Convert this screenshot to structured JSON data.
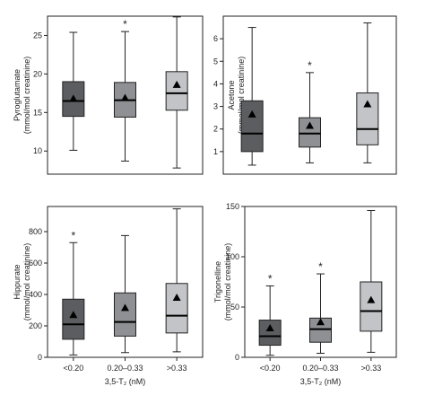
{
  "colors": {
    "box_fills": [
      "#5b5d60",
      "#8e9094",
      "#c2c4c7"
    ],
    "stroke": "#222222",
    "frame": "#222222"
  },
  "chart_data": [
    {
      "type": "box",
      "panel": "top-left",
      "categories": [
        "<0.20",
        "0.20–0.33",
        ">0.33"
      ],
      "show_xticks": false,
      "xlabel": "",
      "ylabel": [
        "Pyroglutamate",
        "(mmol/mol creatinine)"
      ],
      "ylim": [
        7,
        27.5
      ],
      "yticks": [
        10,
        15,
        20,
        25
      ],
      "boxes": [
        {
          "min": 10.1,
          "q1": 14.5,
          "median": 16.5,
          "q3": 19.0,
          "max": 25.4,
          "mean": 16.8
        },
        {
          "min": 8.7,
          "q1": 14.4,
          "median": 16.6,
          "q3": 18.9,
          "max": 25.5,
          "mean": 16.9
        },
        {
          "min": 7.8,
          "q1": 15.3,
          "median": 17.5,
          "q3": 20.3,
          "max": 27.4,
          "mean": 18.6
        }
      ],
      "significance": [
        "",
        "*",
        ""
      ]
    },
    {
      "type": "box",
      "panel": "top-right",
      "categories": [
        "<0.20",
        "0.20–0.33",
        ">0.33"
      ],
      "show_xticks": false,
      "xlabel": "",
      "ylabel": [
        "Acetone",
        "(mmol/mol creatinine)"
      ],
      "ylim": [
        0,
        7
      ],
      "yticks": [
        1,
        2,
        3,
        4,
        5,
        6
      ],
      "boxes": [
        {
          "min": 0.4,
          "q1": 1.0,
          "median": 1.8,
          "q3": 3.25,
          "max": 6.5,
          "mean": 2.65
        },
        {
          "min": 0.5,
          "q1": 1.2,
          "median": 1.8,
          "q3": 2.5,
          "max": 4.5,
          "mean": 2.15
        },
        {
          "min": 0.5,
          "q1": 1.3,
          "median": 2.0,
          "q3": 3.6,
          "max": 6.7,
          "mean": 3.1
        }
      ],
      "significance": [
        "",
        "*",
        ""
      ]
    },
    {
      "type": "box",
      "panel": "bottom-left",
      "categories": [
        "<0.20",
        "0.20–0.33",
        ">0.33"
      ],
      "show_xticks": true,
      "xlabel": "3,5-T₂ (nM)",
      "ylabel": [
        "Hippurate",
        "(mmol/mol creatinine)"
      ],
      "ylim": [
        0,
        960
      ],
      "yticks": [
        0,
        200,
        400,
        600,
        800
      ],
      "boxes": [
        {
          "min": 15,
          "q1": 115,
          "median": 210,
          "q3": 370,
          "max": 730,
          "mean": 270
        },
        {
          "min": 30,
          "q1": 135,
          "median": 225,
          "q3": 410,
          "max": 775,
          "mean": 315
        },
        {
          "min": 35,
          "q1": 155,
          "median": 265,
          "q3": 470,
          "max": 945,
          "mean": 380
        }
      ],
      "significance": [
        "*",
        "",
        ""
      ]
    },
    {
      "type": "box",
      "panel": "bottom-right",
      "categories": [
        "<0.20",
        "0.20–0.33",
        ">0.33"
      ],
      "show_xticks": true,
      "xlabel": "3,5-T₂ (nM)",
      "ylabel": [
        "Trigonelline",
        "(mmol/mol creatinine)"
      ],
      "ylim": [
        0,
        150
      ],
      "yticks": [
        0,
        50,
        100,
        150
      ],
      "boxes": [
        {
          "min": 2,
          "q1": 12,
          "median": 21,
          "q3": 37,
          "max": 71,
          "mean": 29
        },
        {
          "min": 4,
          "q1": 15,
          "median": 28,
          "q3": 39,
          "max": 83,
          "mean": 35
        },
        {
          "min": 5,
          "q1": 26,
          "median": 46,
          "q3": 75,
          "max": 146,
          "mean": 57
        }
      ],
      "significance": [
        "*",
        "*",
        ""
      ]
    }
  ]
}
